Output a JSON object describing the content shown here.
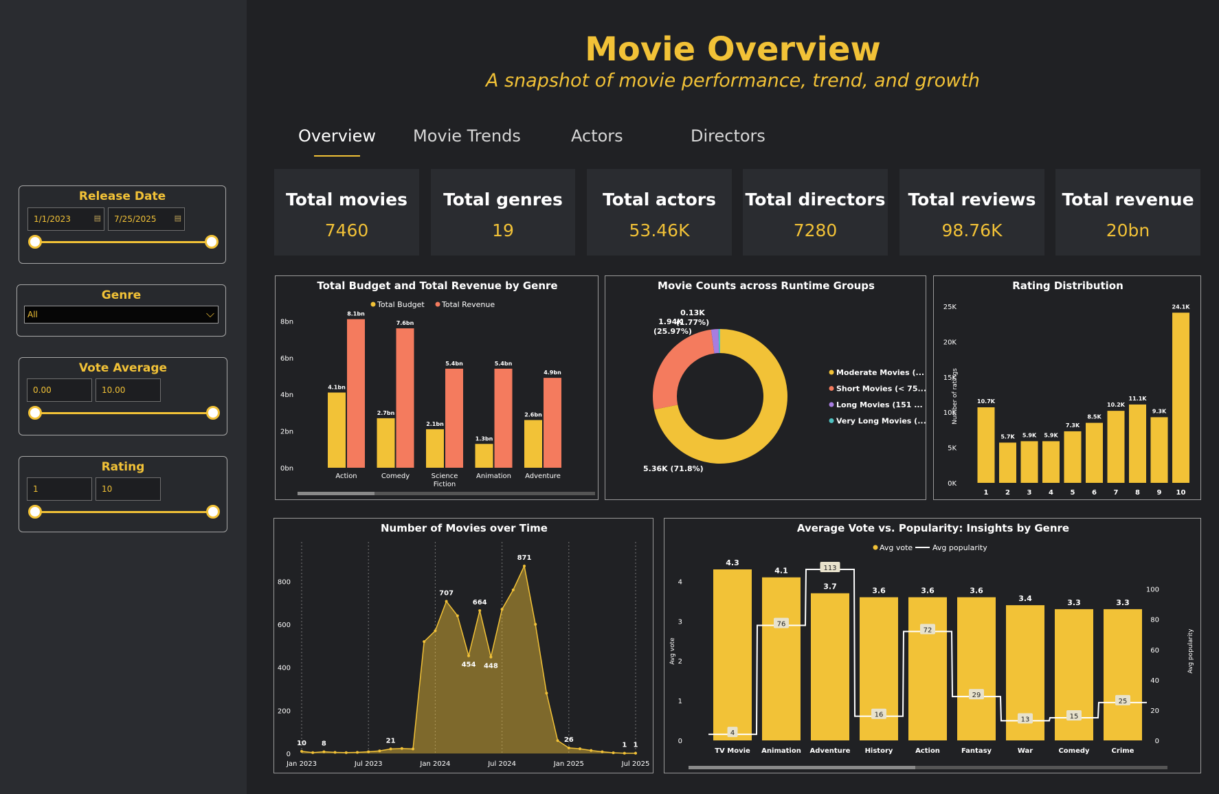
{
  "header": {
    "title": "Movie Overview",
    "subtitle": "A snapshot of movie performance, trend, and growth"
  },
  "tabs": [
    "Overview",
    "Movie Trends",
    "Actors",
    "Directors"
  ],
  "filters": {
    "release_date": {
      "title": "Release Date",
      "from": "1/1/2023",
      "to": "7/25/2025"
    },
    "genre": {
      "title": "Genre",
      "value": "All"
    },
    "vote_average": {
      "title": "Vote Average",
      "min": "0.00",
      "max": "10.00"
    },
    "rating": {
      "title": "Rating",
      "min": "1",
      "max": "10"
    }
  },
  "kpis": [
    {
      "label": "Total movies",
      "value": "7460"
    },
    {
      "label": "Total genres",
      "value": "19"
    },
    {
      "label": "Total actors",
      "value": "53.46K"
    },
    {
      "label": "Total directors",
      "value": "7280"
    },
    {
      "label": "Total reviews",
      "value": "98.76K"
    },
    {
      "label": "Total revenue",
      "value": "20bn"
    }
  ],
  "colors": {
    "accent": "#f2c237",
    "revenue": "#f47b5e",
    "purple": "#a77de0",
    "teal": "#4fc1c1",
    "text": "#ffffff",
    "panel_bg": "#202124",
    "sidebar_bg": "#2a2c30"
  },
  "chart_data": [
    {
      "type": "bar",
      "title": "Total Budget and Total Revenue by Genre",
      "categories": [
        "Action",
        "Comedy",
        "Science Fiction",
        "Animation",
        "Adventure"
      ],
      "series": [
        {
          "name": "Total Budget",
          "values": [
            4.1,
            2.7,
            2.1,
            1.3,
            2.6
          ],
          "labels": [
            "4.1bn",
            "2.7bn",
            "2.1bn",
            "1.3bn",
            "2.6bn"
          ]
        },
        {
          "name": "Total Revenue",
          "values": [
            8.1,
            7.6,
            5.4,
            5.4,
            4.9
          ],
          "labels": [
            "8.1bn",
            "7.6bn",
            "5.4bn",
            "5.4bn",
            "4.9bn"
          ]
        }
      ],
      "yticks": [
        "0bn",
        "2bn",
        "4bn",
        "6bn",
        "8bn"
      ],
      "ylim": [
        0,
        8.5
      ]
    },
    {
      "type": "pie",
      "title": "Movie Counts across Runtime Groups",
      "labels": [
        "Moderate Movies (...",
        "Short Movies (< 75...",
        "Long Movies (151 ...",
        "Very Long Movies (..."
      ],
      "values": [
        5360,
        1940,
        130,
        30
      ],
      "slice_labels": [
        "5.36K (71.8%)",
        "1.94K (25.97%)",
        "0.13K (1.77%)",
        ""
      ],
      "legend_position": "right"
    },
    {
      "type": "bar",
      "title": "Rating Distribution",
      "ylabel": "Number of ratings",
      "categories": [
        "1",
        "2",
        "3",
        "4",
        "5",
        "6",
        "7",
        "8",
        "9",
        "10"
      ],
      "values": [
        10.7,
        5.7,
        5.9,
        5.9,
        7.3,
        8.5,
        10.2,
        11.1,
        9.3,
        24.1
      ],
      "labels": [
        "10.7K",
        "5.7K",
        "5.9K",
        "5.9K",
        "7.3K",
        "8.5K",
        "10.2K",
        "11.1K",
        "9.3K",
        "24.1K"
      ],
      "yticks": [
        "0K",
        "5K",
        "10K",
        "15K",
        "20K",
        "25K"
      ],
      "ylim": [
        0,
        25
      ]
    },
    {
      "type": "area",
      "title": "Number of Movies over Time",
      "x": [
        "2023-01",
        "2023-02",
        "2023-03",
        "2023-04",
        "2023-05",
        "2023-06",
        "2023-07",
        "2023-08",
        "2023-09",
        "2023-10",
        "2023-11",
        "2023-12",
        "2024-01",
        "2024-02",
        "2024-03",
        "2024-04",
        "2024-05",
        "2024-06",
        "2024-07",
        "2024-08",
        "2024-09",
        "2024-10",
        "2024-11",
        "2024-12",
        "2025-01",
        "2025-02",
        "2025-03",
        "2025-04",
        "2025-05",
        "2025-06",
        "2025-07"
      ],
      "values": [
        10,
        4,
        8,
        5,
        4,
        5,
        8,
        12,
        21,
        23,
        21,
        520,
        570,
        707,
        640,
        454,
        664,
        448,
        670,
        760,
        871,
        600,
        280,
        60,
        26,
        22,
        14,
        8,
        3,
        1,
        1
      ],
      "labels": {
        "0": "10",
        "2": "8",
        "8": "21",
        "13": "707",
        "15": "454",
        "16": "664",
        "17": "448",
        "20": "871",
        "24": "26",
        "29": "1",
        "30": "1"
      },
      "xticks": [
        "Jan 2023",
        "Jul 2023",
        "Jan 2024",
        "Jul 2024",
        "Jan 2025",
        "Jul 2025"
      ],
      "yticks": [
        "0",
        "200",
        "400",
        "600",
        "800"
      ],
      "ylim": [
        0,
        900
      ]
    },
    {
      "type": "bar",
      "title": "Average Vote vs. Popularity: Insights by Genre",
      "categories": [
        "TV Movie",
        "Animation",
        "Adventure",
        "History",
        "Action",
        "Fantasy",
        "War",
        "Comedy",
        "Crime"
      ],
      "series": [
        {
          "name": "Avg vote",
          "values": [
            4.3,
            4.1,
            3.7,
            3.6,
            3.6,
            3.6,
            3.4,
            3.3,
            3.3
          ],
          "labels": [
            "4.3",
            "4.1",
            "3.7",
            "3.6",
            "3.6",
            "3.6",
            "3.4",
            "3.3",
            "3.3"
          ]
        },
        {
          "name": "Avg popularity",
          "values": [
            4,
            76,
            113,
            16,
            72,
            29,
            13,
            15,
            25
          ],
          "labels": [
            "4",
            "76",
            "113",
            "16",
            "72",
            "29",
            "13",
            "15",
            "25"
          ]
        }
      ],
      "ylabel": "Avg vote",
      "y2label": "Avg popularity",
      "yticks": [
        "0",
        "1",
        "2",
        "3",
        "4"
      ],
      "y2ticks": [
        "0",
        "20",
        "40",
        "60",
        "80",
        "100"
      ],
      "ylim": [
        0,
        4.3
      ],
      "y2lim": [
        0,
        113
      ]
    }
  ]
}
